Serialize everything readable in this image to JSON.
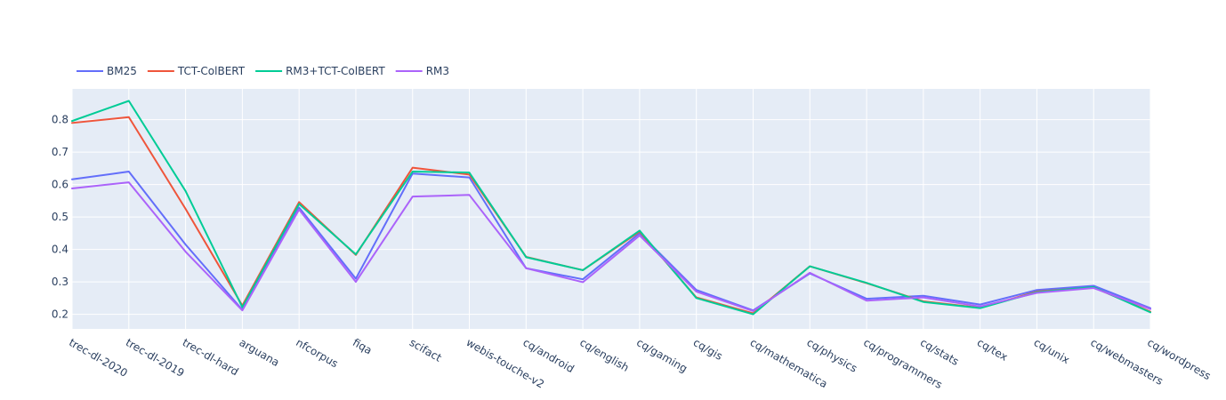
{
  "chart_data": {
    "type": "line",
    "title": "",
    "xlabel": "",
    "ylabel": "",
    "legend_position": "top-left",
    "grid": true,
    "ylim": [
      0.155,
      0.895
    ],
    "yticks": [
      0.2,
      0.3,
      0.4,
      0.5,
      0.6,
      0.7,
      0.8
    ],
    "ytick_labels": [
      "0.2",
      "0.3",
      "0.4",
      "0.5",
      "0.6",
      "0.7",
      "0.8"
    ],
    "categories": [
      "trec-dl-2020",
      "trec-dl-2019",
      "trec-dl-hard",
      "arguana",
      "nfcorpus",
      "fiqa",
      "scifact",
      "webis-touche-v2",
      "cq/android",
      "cq/english",
      "cq/gaming",
      "cq/gis",
      "cq/mathematica",
      "cq/physics",
      "cq/programmers",
      "cq/stats",
      "cq/tex",
      "cq/unix",
      "cq/webmasters",
      "cq/wordpress"
    ],
    "series": [
      {
        "name": "BM25",
        "color": "#636efa",
        "values": [
          0.616,
          0.64,
          0.415,
          0.214,
          0.529,
          0.31,
          0.634,
          0.622,
          0.342,
          0.308,
          0.45,
          0.275,
          0.212,
          0.326,
          0.248,
          0.257,
          0.23,
          0.275,
          0.288,
          0.219
        ]
      },
      {
        "name": "TCT-ColBERT",
        "color": "#ef553b",
        "values": [
          0.79,
          0.808,
          0.525,
          0.227,
          0.546,
          0.383,
          0.652,
          0.631,
          0.377,
          0.336,
          0.455,
          0.252,
          0.203,
          0.348,
          0.296,
          0.24,
          0.22,
          0.27,
          0.283,
          0.208
        ]
      },
      {
        "name": "RM3+TCT-ColBERT",
        "color": "#00cc96",
        "values": [
          0.796,
          0.858,
          0.58,
          0.222,
          0.54,
          0.385,
          0.64,
          0.637,
          0.376,
          0.336,
          0.458,
          0.25,
          0.2,
          0.348,
          0.297,
          0.238,
          0.219,
          0.268,
          0.284,
          0.206
        ]
      },
      {
        "name": "RM3",
        "color": "#ab63fa",
        "values": [
          0.588,
          0.607,
          0.393,
          0.212,
          0.523,
          0.3,
          0.563,
          0.568,
          0.342,
          0.299,
          0.443,
          0.27,
          0.21,
          0.328,
          0.242,
          0.252,
          0.224,
          0.266,
          0.281,
          0.216
        ]
      }
    ]
  }
}
